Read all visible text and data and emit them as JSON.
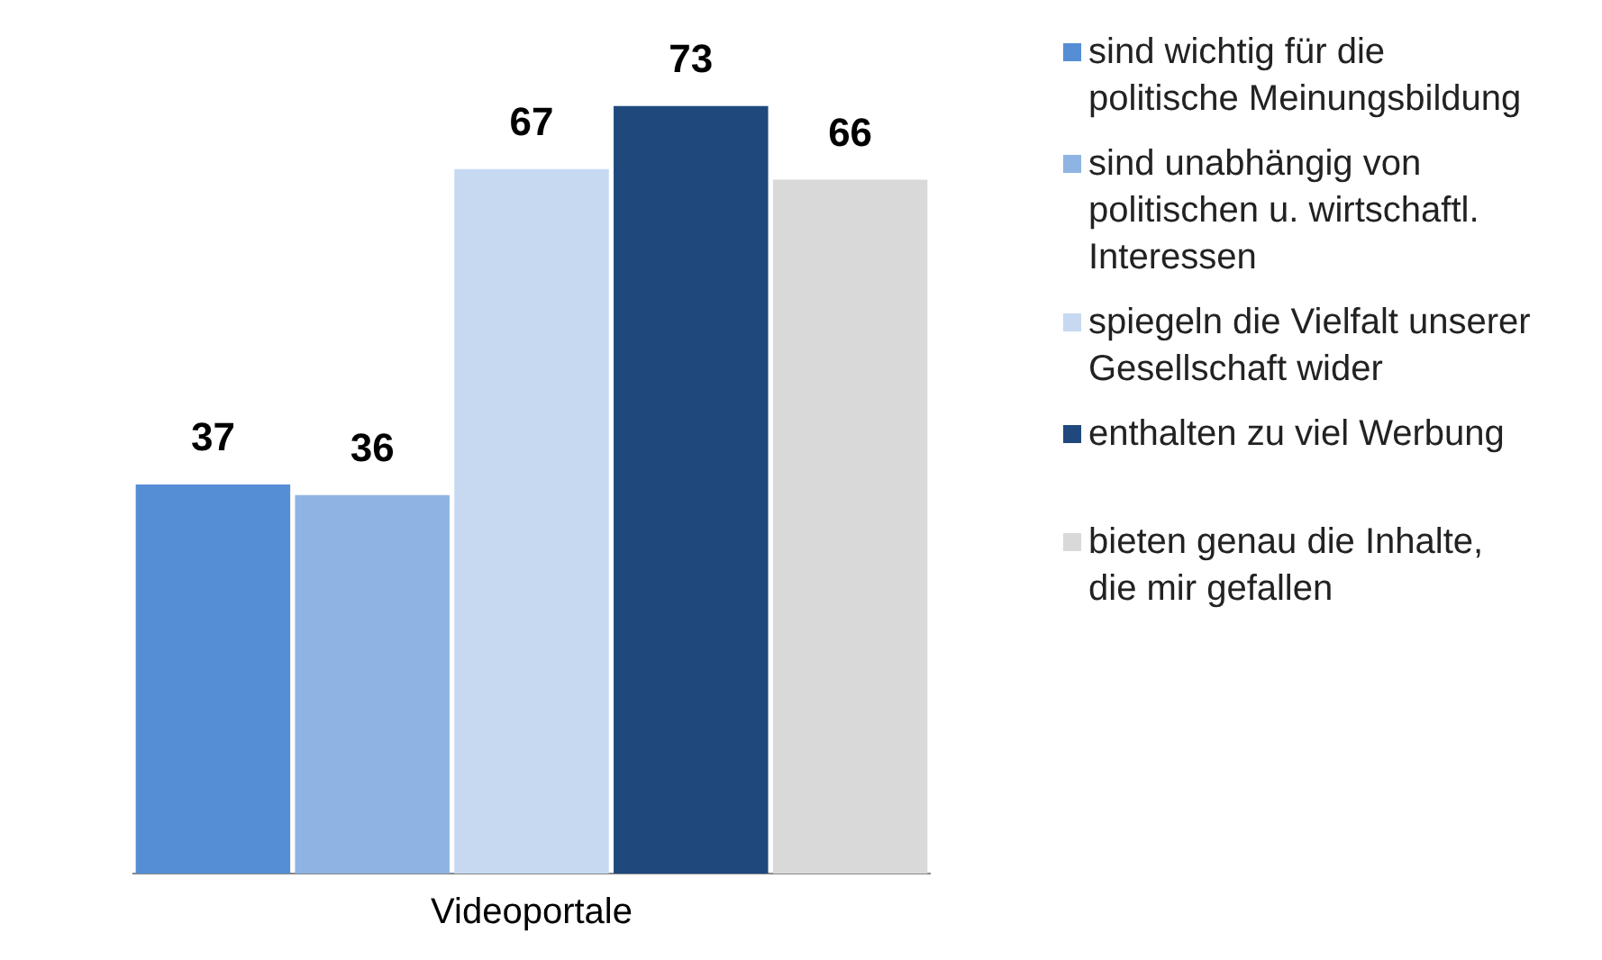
{
  "chart_data": {
    "type": "bar",
    "xlabel": "Videoportale",
    "categories": [
      null,
      null,
      null,
      null,
      null
    ],
    "series": [
      {
        "name": "sind wichtig für die politische Meinungsbildung",
        "color": "#558ed5",
        "values": [
          37,
          null,
          null,
          null,
          null
        ]
      },
      {
        "name": "sind unabhängig von politischen u. wirtschaftl. Interessen",
        "color": "#8eb4e3",
        "values": [
          null,
          36,
          null,
          null,
          null
        ]
      },
      {
        "name": "spiegeln die Vielfalt unserer Gesellschaft wider",
        "color": "#c6d9f1",
        "values": [
          null,
          null,
          67,
          null,
          null
        ]
      },
      {
        "name": "enthalten zu viel Werbung",
        "color": "#1f497d",
        "values": [
          null,
          null,
          null,
          73,
          null
        ]
      },
      {
        "name": "bieten genau die Inhalte, die mir gefallen",
        "color": "#d9d9d9",
        "values": [
          null,
          null,
          null,
          null,
          66
        ]
      }
    ],
    "stacked": true,
    "data_labels": true,
    "legend": "right",
    "tick_labels": false
  }
}
